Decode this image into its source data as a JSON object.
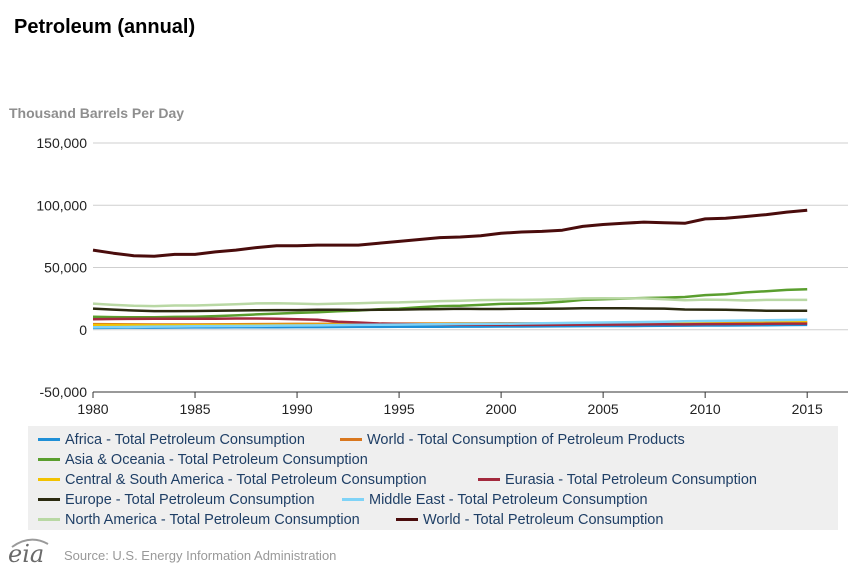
{
  "title": "Petroleum (annual)",
  "source": "Source: U.S. Energy Information Administration",
  "logo_text": "eia",
  "chart_data": {
    "type": "line",
    "title": "Petroleum (annual)",
    "ylabel": "Thousand Barrels Per Day",
    "xlabel": "",
    "x": [
      1980,
      1981,
      1982,
      1983,
      1984,
      1985,
      1986,
      1987,
      1988,
      1989,
      1990,
      1991,
      1992,
      1993,
      1994,
      1995,
      1996,
      1997,
      1998,
      1999,
      2000,
      2001,
      2002,
      2003,
      2004,
      2005,
      2006,
      2007,
      2008,
      2009,
      2010,
      2011,
      2012,
      2013,
      2014,
      2015
    ],
    "xticks": [
      "1980",
      "1985",
      "1990",
      "1995",
      "2000",
      "2005",
      "2010",
      "2015"
    ],
    "xlim": [
      1980,
      2017
    ],
    "yticks": [
      "150,000",
      "100,000",
      "50,000",
      "0",
      "-50,000"
    ],
    "ytick_values": [
      150000,
      100000,
      50000,
      0,
      -50000
    ],
    "ylim": [
      -50000,
      150000
    ],
    "grid": true,
    "legend_position": "bottom",
    "series": [
      {
        "name": "Africa - Total Petroleum Consumption",
        "color": "#1f8fd6",
        "values": [
          1500,
          1600,
          1700,
          1750,
          1800,
          1850,
          1900,
          1950,
          2000,
          2050,
          2100,
          2150,
          2200,
          2250,
          2300,
          2350,
          2400,
          2450,
          2500,
          2550,
          2600,
          2650,
          2700,
          2800,
          2900,
          3000,
          3050,
          3100,
          3200,
          3300,
          3400,
          3450,
          3500,
          3650,
          3800,
          3900
        ]
      },
      {
        "name": "World - Total Consumption of Petroleum Products",
        "color": "#d9771e",
        "values": [
          4500,
          4400,
          4300,
          4200,
          4200,
          4200,
          4300,
          4400,
          4500,
          4600,
          4700,
          4700,
          4800,
          4800,
          4900,
          4900,
          5000,
          5000,
          5100,
          5100,
          5200,
          5200,
          5300,
          5300,
          5400,
          5500,
          5500,
          5600,
          5600,
          5600,
          5700,
          5700,
          5800,
          5800,
          5900,
          5900
        ]
      },
      {
        "name": "Asia & Oceania - Total Petroleum Consumption",
        "color": "#5a9e2e",
        "values": [
          10500,
          10200,
          10000,
          10000,
          10300,
          10500,
          11000,
          11500,
          12300,
          13000,
          13500,
          14000,
          14800,
          15500,
          16500,
          17000,
          18000,
          19000,
          19200,
          20000,
          20800,
          21000,
          21500,
          22500,
          24000,
          24500,
          25000,
          25500,
          25800,
          26300,
          27800,
          28500,
          30000,
          31000,
          32000,
          32500
        ]
      },
      {
        "name": "Central & South America - Total Petroleum Consumption",
        "color": "#f2c200",
        "values": [
          3800,
          3800,
          3700,
          3600,
          3600,
          3600,
          3700,
          3800,
          3800,
          3900,
          3900,
          4000,
          4100,
          4200,
          4300,
          4400,
          4500,
          4600,
          4700,
          4800,
          4800,
          4800,
          4800,
          4800,
          4900,
          5000,
          5100,
          5300,
          5400,
          5400,
          5600,
          5700,
          5800,
          6000,
          6100,
          6100
        ]
      },
      {
        "name": "Eurasia - Total Petroleum Consumption",
        "color": "#a3293d",
        "values": [
          8500,
          8600,
          8700,
          8800,
          8800,
          8900,
          8900,
          9000,
          9000,
          8800,
          8400,
          8000,
          6500,
          5800,
          5000,
          4700,
          4400,
          4200,
          4100,
          4000,
          3900,
          3900,
          3900,
          4000,
          4100,
          4100,
          4200,
          4300,
          4400,
          4300,
          4500,
          4600,
          4700,
          4800,
          4900,
          4900
        ]
      },
      {
        "name": "Europe - Total Petroleum Consumption",
        "color": "#2b2a10",
        "values": [
          17000,
          16200,
          15500,
          15000,
          15000,
          15100,
          15300,
          15500,
          15700,
          15800,
          15800,
          16000,
          16000,
          15900,
          16000,
          16200,
          16500,
          16600,
          16800,
          16700,
          16700,
          16800,
          16800,
          17000,
          17200,
          17300,
          17300,
          17100,
          17000,
          16300,
          16200,
          16000,
          15600,
          15300,
          15200,
          15300
        ]
      },
      {
        "name": "Middle East - Total Petroleum Consumption",
        "color": "#7fd3f7",
        "values": [
          2000,
          2100,
          2300,
          2500,
          2600,
          2800,
          2900,
          3000,
          3100,
          3300,
          3400,
          3500,
          3700,
          3900,
          4000,
          4100,
          4300,
          4400,
          4600,
          4700,
          4800,
          5000,
          5200,
          5400,
          5600,
          5800,
          6000,
          6200,
          6500,
          6800,
          7000,
          7200,
          7400,
          7600,
          7800,
          8000
        ]
      },
      {
        "name": "North America - Total Petroleum Consumption",
        "color": "#b9d8a4",
        "values": [
          21000,
          20000,
          19200,
          19000,
          19500,
          19500,
          20000,
          20500,
          21200,
          21300,
          21000,
          20600,
          21000,
          21300,
          21800,
          22000,
          22500,
          23000,
          23300,
          23800,
          24000,
          24000,
          24200,
          24500,
          25200,
          25300,
          25200,
          25200,
          24500,
          23700,
          24200,
          24000,
          23500,
          24000,
          24000,
          24000
        ]
      },
      {
        "name": "World - Total Petroleum Consumption",
        "color": "#4a0c0c",
        "values": [
          64000,
          61500,
          59500,
          59000,
          60500,
          60500,
          62500,
          64000,
          66000,
          67500,
          67500,
          68000,
          68000,
          68000,
          69500,
          71000,
          72500,
          74000,
          74500,
          75500,
          77500,
          78500,
          79000,
          80000,
          83000,
          84500,
          85500,
          86500,
          86000,
          85500,
          89000,
          89500,
          91000,
          92500,
          94500,
          96000
        ]
      }
    ]
  },
  "legend_rows": [
    [
      {
        "series": 0,
        "label": "Africa - Total Petroleum Consumption"
      },
      {
        "series": 1,
        "label": "World - Total Consumption of Petroleum Products"
      }
    ],
    [
      {
        "series": 2,
        "label": "Asia & Oceania - Total Petroleum Consumption"
      }
    ],
    [
      {
        "series": 3,
        "label": "Central & South America - Total Petroleum Consumption"
      },
      {
        "series": 4,
        "label": "Eurasia - Total Petroleum Consumption"
      }
    ],
    [
      {
        "series": 5,
        "label": "Europe - Total Petroleum Consumption"
      },
      {
        "series": 6,
        "label": "Middle East - Total Petroleum Consumption"
      }
    ],
    [
      {
        "series": 7,
        "label": "North America - Total Petroleum Consumption"
      },
      {
        "series": 8,
        "label": "World - Total Petroleum Consumption"
      }
    ]
  ]
}
